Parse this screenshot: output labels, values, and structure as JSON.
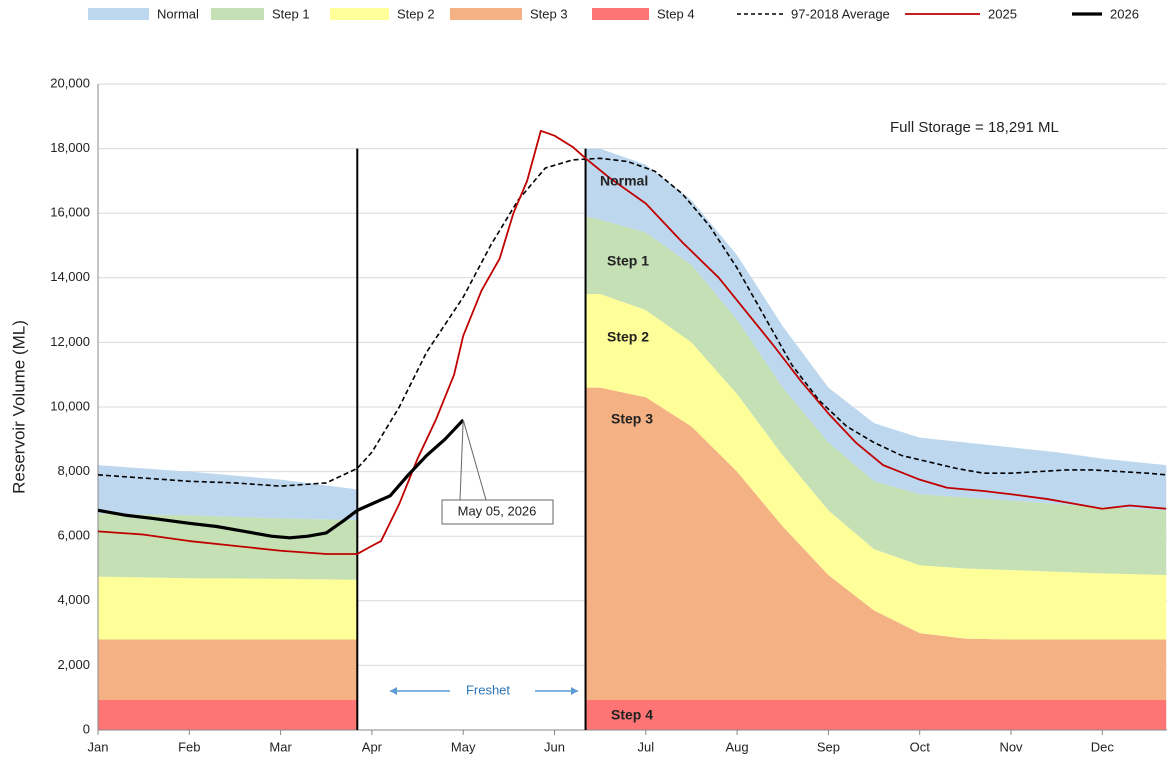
{
  "chart_data": {
    "type": "area",
    "y_label": "Reservoir Volume (ML)",
    "xlim": [
      0,
      11.7
    ],
    "xticks": [
      {
        "value": 0,
        "label": "Jan"
      },
      {
        "value": 1,
        "label": "Feb"
      },
      {
        "value": 2,
        "label": "Mar"
      },
      {
        "value": 3,
        "label": "Apr"
      },
      {
        "value": 4,
        "label": "May"
      },
      {
        "value": 5,
        "label": "Jun"
      },
      {
        "value": 6,
        "label": "Jul"
      },
      {
        "value": 7,
        "label": "Aug"
      },
      {
        "value": 8,
        "label": "Sep"
      },
      {
        "value": 9,
        "label": "Oct"
      },
      {
        "value": 10,
        "label": "Nov"
      },
      {
        "value": 11,
        "label": "Dec"
      }
    ],
    "ylim": [
      0,
      20000
    ],
    "yticks": [
      0,
      {
        "value": 2000,
        "label": "2,000"
      },
      {
        "value": 4000,
        "label": "4,000"
      },
      {
        "value": 6000,
        "label": "6,000"
      },
      {
        "value": 8000,
        "label": "8,000"
      },
      {
        "value": 10000,
        "label": "10,000"
      },
      {
        "value": 12000,
        "label": "12,000"
      },
      {
        "value": 14000,
        "label": "14,000"
      },
      {
        "value": 16000,
        "label": "16,000"
      },
      {
        "value": 18000,
        "label": "18,000"
      },
      {
        "value": 20000,
        "label": "20,000"
      }
    ],
    "grid": true,
    "stacked": true,
    "x": [
      0,
      1,
      2,
      2.84,
      4,
      5.34,
      5.5,
      6,
      6.5,
      7,
      7.5,
      8,
      8.5,
      9,
      9.5,
      10,
      10.5,
      11,
      11.7
    ],
    "vlines": [
      2.84,
      5.34
    ],
    "vline_top": 18000,
    "series": [
      {
        "name": "Normal",
        "type": "area",
        "color": "#bdd7ee",
        "values": [
          1500,
          1350,
          1200,
          950,
          null,
          2100,
          2200,
          2100,
          2000,
          2000,
          1900,
          1700,
          1800,
          1750,
          1700,
          1650,
          1600,
          1500,
          1400
        ]
      },
      {
        "name": "Step 1",
        "type": "area",
        "color": "#c5e0b4",
        "values": [
          1950,
          1950,
          1870,
          1850,
          null,
          2400,
          2300,
          2400,
          2400,
          2300,
          2100,
          2100,
          2100,
          2200,
          2200,
          2150,
          2100,
          2050,
          2000
        ]
      },
      {
        "name": "Step 2",
        "type": "area",
        "color": "#ffff99",
        "values": [
          1950,
          1900,
          1880,
          1850,
          null,
          2900,
          2900,
          2700,
          2600,
          2400,
          2200,
          2000,
          1900,
          2100,
          2170,
          2150,
          2100,
          2050,
          2000
        ]
      },
      {
        "name": "Step 3",
        "type": "area",
        "color": "#f4b183",
        "values": [
          1870,
          1870,
          1870,
          1870,
          null,
          9670,
          9670,
          9370,
          8470,
          7070,
          5370,
          3870,
          2770,
          2070,
          1900,
          1870,
          1870,
          1870,
          1870
        ]
      },
      {
        "name": "Step 4",
        "type": "area",
        "color": "#ff7575",
        "values": [
          930,
          930,
          930,
          930,
          null,
          930,
          930,
          930,
          930,
          930,
          930,
          930,
          930,
          930,
          930,
          930,
          930,
          930,
          930
        ]
      },
      {
        "name": "97-2018 Average",
        "type": "line",
        "color": "#000000",
        "dash": true,
        "line_width": 1.6,
        "x": [
          0,
          0.5,
          1,
          1.5,
          2,
          2.5,
          2.84,
          3,
          3.3,
          3.6,
          4,
          4.3,
          4.6,
          4.9,
          5.2,
          5.5,
          5.8,
          6.1,
          6.4,
          6.7,
          7.0,
          7.3,
          7.6,
          7.9,
          8.2,
          8.5,
          8.8,
          9.1,
          9.4,
          9.7,
          10.0,
          10.3,
          10.6,
          10.9,
          11.2,
          11.5,
          11.7
        ],
        "values": [
          7900,
          7800,
          7700,
          7650,
          7550,
          7650,
          8100,
          8600,
          10000,
          11700,
          13400,
          15000,
          16400,
          17400,
          17650,
          17700,
          17600,
          17300,
          16600,
          15600,
          14300,
          12800,
          11300,
          10200,
          9400,
          8900,
          8500,
          8300,
          8100,
          7950,
          7950,
          8000,
          8050,
          8050,
          8000,
          7950,
          7900
        ]
      },
      {
        "name": "2025",
        "type": "line",
        "color": "#c00000",
        "line_width": 1.8,
        "x": [
          0,
          0.5,
          1,
          1.5,
          2,
          2.5,
          2.84,
          3.0,
          3.1,
          3.3,
          3.5,
          3.7,
          3.9,
          4.0,
          4.2,
          4.4,
          4.55,
          4.7,
          4.85,
          5.0,
          5.2,
          5.34,
          5.6,
          6.0,
          6.4,
          6.8,
          7.0,
          7.4,
          7.7,
          8.0,
          8.3,
          8.6,
          9.0,
          9.3,
          9.7,
          10.0,
          10.4,
          10.7,
          11.0,
          11.3,
          11.7
        ],
        "values": [
          6150,
          6050,
          5850,
          5700,
          5550,
          5450,
          5450,
          5700,
          5850,
          7000,
          8400,
          9600,
          11000,
          12200,
          13600,
          14600,
          16000,
          17000,
          18550,
          18400,
          18050,
          17700,
          17100,
          16300,
          15100,
          14000,
          13300,
          11900,
          10800,
          9800,
          8900,
          8200,
          7750,
          7500,
          7400,
          7300,
          7150,
          7000,
          6850,
          6950,
          6850
        ]
      },
      {
        "name": "2026",
        "type": "line",
        "color": "#000000",
        "line_width": 3.2,
        "x": [
          0,
          0.3,
          0.6,
          1,
          1.3,
          1.6,
          1.9,
          2.1,
          2.3,
          2.5,
          2.7,
          2.84,
          3.0,
          3.2,
          3.4,
          3.6,
          3.8,
          4.0
        ],
        "values": [
          6800,
          6650,
          6550,
          6400,
          6300,
          6150,
          6000,
          5950,
          6000,
          6100,
          6500,
          6800,
          7000,
          7250,
          7900,
          8500,
          9000,
          9600
        ]
      }
    ],
    "annotations": [
      "Full Storage  = 18,291 ML",
      "Normal",
      "Step 1",
      "Step 2",
      "Step 3",
      "Step 4",
      "Freshet",
      "May 05, 2026"
    ]
  }
}
